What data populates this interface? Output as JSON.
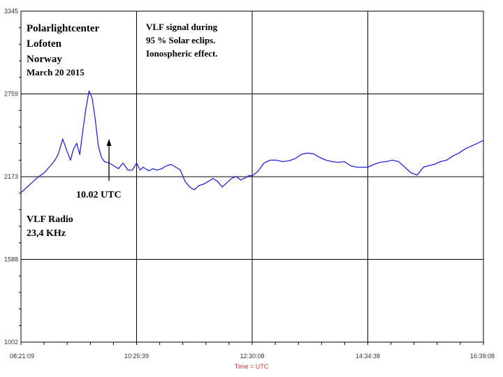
{
  "chart_data": {
    "type": "line",
    "title": "",
    "xlabel": "Time = UTC",
    "ylabel": "",
    "ylim": [
      1002,
      3345
    ],
    "y_ticks": [
      "1002",
      "1588",
      "2173",
      "2759",
      "3345"
    ],
    "y_tick_values": [
      1002,
      1588,
      2173,
      2759,
      3345
    ],
    "x_ticks": [
      "08:21:09",
      "10:25:39",
      "12:30:08",
      "14:34:38",
      "16:39:08"
    ],
    "x_tick_seconds": [
      0,
      7470,
      14939,
      22409,
      29879
    ],
    "grid": true,
    "series": [
      {
        "name": "",
        "color": "#2424d8",
        "x_seconds": [
          0,
          300,
          700,
          1100,
          1500,
          1900,
          2200,
          2400,
          2700,
          2950,
          3200,
          3400,
          3600,
          3800,
          4000,
          4200,
          4400,
          4600,
          4800,
          5000,
          5200,
          5400,
          5700,
          6000,
          6300,
          6600,
          6900,
          7200,
          7470,
          7700,
          7900,
          8100,
          8300,
          8500,
          8800,
          9100,
          9400,
          9700,
          10000,
          10300,
          10600,
          10900,
          11200,
          11500,
          11800,
          12100,
          12400,
          12700,
          13000,
          13300,
          13600,
          13900,
          14200,
          14500,
          14700,
          14939,
          15300,
          15700,
          16100,
          16500,
          16900,
          17300,
          17700,
          18100,
          18500,
          18900,
          19300,
          19700,
          20100,
          20500,
          20900,
          21300,
          21700,
          22100,
          22409,
          22800,
          23200,
          23600,
          24000,
          24400,
          24800,
          25200,
          25600,
          26000,
          26300,
          26700,
          27100,
          27500,
          27900,
          28300,
          28700,
          29100,
          29500,
          29879
        ],
        "values": [
          2060,
          2090,
          2130,
          2170,
          2200,
          2250,
          2290,
          2330,
          2440,
          2360,
          2290,
          2370,
          2410,
          2330,
          2500,
          2660,
          2780,
          2730,
          2580,
          2390,
          2310,
          2280,
          2270,
          2250,
          2230,
          2270,
          2220,
          2220,
          2270,
          2220,
          2240,
          2225,
          2215,
          2230,
          2220,
          2230,
          2250,
          2260,
          2240,
          2220,
          2140,
          2100,
          2080,
          2110,
          2120,
          2140,
          2160,
          2140,
          2100,
          2130,
          2160,
          2175,
          2150,
          2165,
          2180,
          2180,
          2210,
          2270,
          2290,
          2290,
          2280,
          2285,
          2300,
          2330,
          2340,
          2335,
          2310,
          2290,
          2280,
          2275,
          2280,
          2250,
          2240,
          2240,
          2240,
          2260,
          2275,
          2280,
          2290,
          2280,
          2240,
          2200,
          2185,
          2240,
          2250,
          2260,
          2280,
          2290,
          2320,
          2340,
          2370,
          2390,
          2410,
          2430
        ]
      }
    ],
    "annotations": {
      "station": [
        "Polarlightcenter",
        "Lofoten",
        "Norway",
        "March 20 2015"
      ],
      "event": [
        "VLF signal during",
        "95 % Solar eclips.",
        "Ionospheric effect."
      ],
      "peak": "10.02 UTC",
      "radio": [
        "VLF Radio",
        "23,4 KHz"
      ]
    }
  }
}
